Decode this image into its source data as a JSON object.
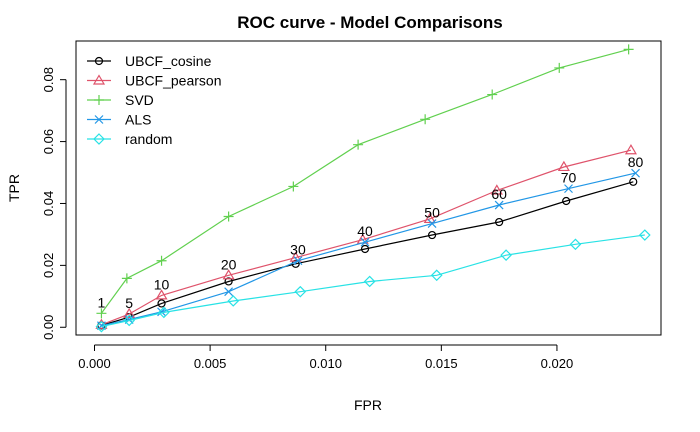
{
  "chart_data": {
    "type": "line",
    "title": "ROC curve - Model Comparisons",
    "xlabel": "FPR",
    "ylabel": "TPR",
    "xlim": [
      -0.0008,
      0.0245
    ],
    "ylim": [
      -0.0025,
      0.0925
    ],
    "x_ticks": [
      0.0,
      0.005,
      0.01,
      0.015,
      0.02
    ],
    "x_tick_labels": [
      "0.000",
      "0.005",
      "0.010",
      "0.015",
      "0.020"
    ],
    "y_ticks": [
      0.0,
      0.02,
      0.04,
      0.06,
      0.08
    ],
    "y_tick_labels": [
      "0.00",
      "0.02",
      "0.04",
      "0.06",
      "0.08"
    ],
    "grid": false,
    "legend_position": "top-left",
    "series": [
      {
        "name": "UBCF_cosine",
        "color": "#000000",
        "marker": "circle",
        "x": [
          0.0003,
          0.0015,
          0.0029,
          0.0058,
          0.0087,
          0.0117,
          0.0146,
          0.0175,
          0.0204,
          0.0233
        ],
        "y": [
          0.0006,
          0.0033,
          0.0077,
          0.0148,
          0.0205,
          0.0253,
          0.0298,
          0.034,
          0.0408,
          0.047
        ]
      },
      {
        "name": "UBCF_pearson",
        "color": "#DF536B",
        "marker": "triangle",
        "x": [
          0.0003,
          0.0015,
          0.0029,
          0.0058,
          0.0087,
          0.0116,
          0.0145,
          0.0174,
          0.0203,
          0.0232
        ],
        "y": [
          0.0008,
          0.0043,
          0.0103,
          0.0168,
          0.0225,
          0.0283,
          0.035,
          0.0442,
          0.0518,
          0.0572
        ]
      },
      {
        "name": "SVD",
        "color": "#61D04F",
        "marker": "plus",
        "x": [
          0.0003,
          0.0014,
          0.0029,
          0.0058,
          0.0086,
          0.0114,
          0.0143,
          0.0172,
          0.0201,
          0.0231
        ],
        "y": [
          0.0045,
          0.0158,
          0.0215,
          0.0358,
          0.0455,
          0.059,
          0.0672,
          0.0752,
          0.0838,
          0.0898
        ]
      },
      {
        "name": "ALS",
        "color": "#2297E6",
        "marker": "x",
        "x": [
          0.0003,
          0.0015,
          0.0029,
          0.0058,
          0.0088,
          0.0117,
          0.0146,
          0.0175,
          0.0205,
          0.0234
        ],
        "y": [
          0.0005,
          0.0025,
          0.005,
          0.0115,
          0.0215,
          0.0275,
          0.0335,
          0.0395,
          0.0448,
          0.0498
        ]
      },
      {
        "name": "random",
        "color": "#28E2E5",
        "marker": "diamond",
        "x": [
          0.0003,
          0.0015,
          0.003,
          0.006,
          0.0089,
          0.0119,
          0.0148,
          0.0178,
          0.0208,
          0.0238
        ],
        "y": [
          0.0002,
          0.0022,
          0.0048,
          0.0085,
          0.0115,
          0.0148,
          0.0168,
          0.0233,
          0.0268,
          0.0298
        ]
      }
    ],
    "point_labels": [
      {
        "text": "1",
        "x": 0.0003,
        "y": 0.0045
      },
      {
        "text": "5",
        "x": 0.0015,
        "y": 0.0043
      },
      {
        "text": "10",
        "x": 0.0029,
        "y": 0.0103
      },
      {
        "text": "20",
        "x": 0.0058,
        "y": 0.0168
      },
      {
        "text": "30",
        "x": 0.0088,
        "y": 0.0215
      },
      {
        "text": "40",
        "x": 0.0117,
        "y": 0.0275
      },
      {
        "text": "50",
        "x": 0.0146,
        "y": 0.0335
      },
      {
        "text": "60",
        "x": 0.0175,
        "y": 0.0395
      },
      {
        "text": "70",
        "x": 0.0205,
        "y": 0.0448
      },
      {
        "text": "80",
        "x": 0.0234,
        "y": 0.0498
      }
    ]
  }
}
